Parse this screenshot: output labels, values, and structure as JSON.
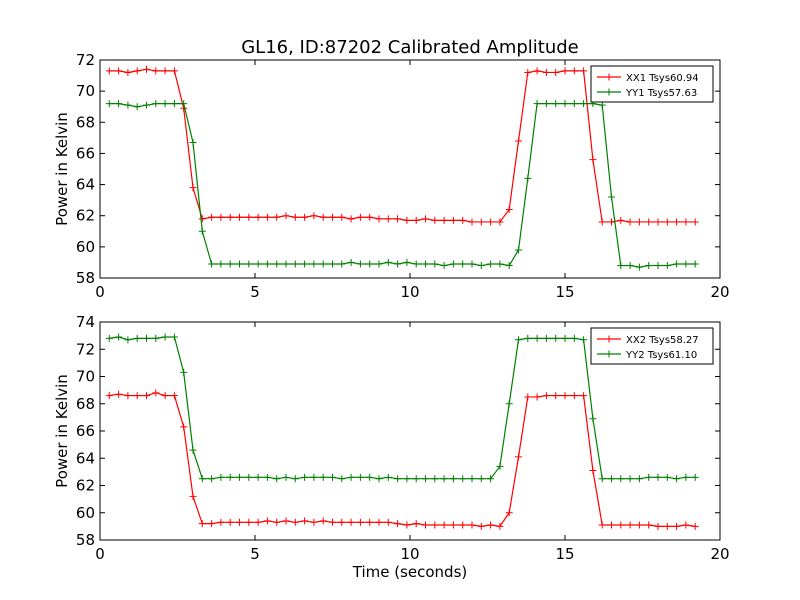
{
  "figure": {
    "title": "GL16, ID:87202 Calibrated Amplitude"
  },
  "chart_data": [
    {
      "type": "line",
      "xlabel": "",
      "ylabel": "Power in Kelvin",
      "xlim": [
        0,
        20
      ],
      "ylim": [
        58,
        72
      ],
      "xticks": [
        0,
        5,
        10,
        15,
        20
      ],
      "yticks": [
        58,
        60,
        62,
        64,
        66,
        68,
        70,
        72
      ],
      "grid": false,
      "legend": "top-right",
      "x": [
        0.3,
        0.6,
        0.9,
        1.2,
        1.5,
        1.8,
        2.1,
        2.4,
        2.7,
        3.0,
        3.3,
        3.6,
        3.9,
        4.2,
        4.5,
        4.8,
        5.1,
        5.4,
        5.7,
        6.0,
        6.3,
        6.6,
        6.9,
        7.2,
        7.5,
        7.8,
        8.1,
        8.4,
        8.7,
        9.0,
        9.3,
        9.6,
        9.9,
        10.2,
        10.5,
        10.8,
        11.1,
        11.4,
        11.7,
        12.0,
        12.3,
        12.6,
        12.9,
        13.2,
        13.5,
        13.8,
        14.1,
        14.4,
        14.7,
        15.0,
        15.3,
        15.6,
        15.9,
        16.2,
        16.5,
        16.8,
        17.1,
        17.4,
        17.7,
        18.0,
        18.3,
        18.6,
        18.9,
        19.2
      ],
      "series": [
        {
          "name": "XX1 Tsys60.94",
          "color": "#ff0000",
          "values": [
            71.3,
            71.3,
            71.2,
            71.3,
            71.4,
            71.3,
            71.3,
            71.3,
            68.9,
            63.8,
            61.8,
            61.9,
            61.9,
            61.9,
            61.9,
            61.9,
            61.9,
            61.9,
            61.9,
            62.0,
            61.9,
            61.9,
            62.0,
            61.9,
            61.9,
            61.9,
            61.8,
            61.9,
            61.9,
            61.8,
            61.8,
            61.8,
            61.7,
            61.7,
            61.8,
            61.7,
            61.7,
            61.7,
            61.7,
            61.6,
            61.6,
            61.6,
            61.6,
            62.4,
            66.8,
            71.2,
            71.3,
            71.2,
            71.2,
            71.3,
            71.3,
            71.3,
            65.6,
            61.6,
            61.6,
            61.7,
            61.6,
            61.6,
            61.6,
            61.6,
            61.6,
            61.6,
            61.6,
            61.6
          ]
        },
        {
          "name": "YY1 Tsys57.63",
          "color": "#008000",
          "values": [
            69.2,
            69.2,
            69.1,
            69.0,
            69.1,
            69.2,
            69.2,
            69.2,
            69.2,
            66.7,
            61.0,
            58.9,
            58.9,
            58.9,
            58.9,
            58.9,
            58.9,
            58.9,
            58.9,
            58.9,
            58.9,
            58.9,
            58.9,
            58.9,
            58.9,
            58.9,
            59.0,
            58.9,
            58.9,
            58.9,
            59.0,
            58.9,
            59.0,
            58.9,
            58.9,
            58.9,
            58.8,
            58.9,
            58.9,
            58.9,
            58.8,
            58.9,
            58.9,
            58.8,
            59.8,
            64.4,
            69.2,
            69.2,
            69.2,
            69.2,
            69.2,
            69.2,
            69.2,
            69.1,
            63.2,
            58.8,
            58.8,
            58.7,
            58.8,
            58.8,
            58.8,
            58.9,
            58.9,
            58.9
          ]
        }
      ]
    },
    {
      "type": "line",
      "xlabel": "Time (seconds)",
      "ylabel": "Power in Kelvin",
      "xlim": [
        0,
        20
      ],
      "ylim": [
        58,
        74
      ],
      "xticks": [
        0,
        5,
        10,
        15,
        20
      ],
      "yticks": [
        58,
        60,
        62,
        64,
        66,
        68,
        70,
        72,
        74
      ],
      "grid": false,
      "legend": "top-right",
      "x": [
        0.3,
        0.6,
        0.9,
        1.2,
        1.5,
        1.8,
        2.1,
        2.4,
        2.7,
        3.0,
        3.3,
        3.6,
        3.9,
        4.2,
        4.5,
        4.8,
        5.1,
        5.4,
        5.7,
        6.0,
        6.3,
        6.6,
        6.9,
        7.2,
        7.5,
        7.8,
        8.1,
        8.4,
        8.7,
        9.0,
        9.3,
        9.6,
        9.9,
        10.2,
        10.5,
        10.8,
        11.1,
        11.4,
        11.7,
        12.0,
        12.3,
        12.6,
        12.9,
        13.2,
        13.5,
        13.8,
        14.1,
        14.4,
        14.7,
        15.0,
        15.3,
        15.6,
        15.9,
        16.2,
        16.5,
        16.8,
        17.1,
        17.4,
        17.7,
        18.0,
        18.3,
        18.6,
        18.9,
        19.2
      ],
      "series": [
        {
          "name": "XX2 Tsys58.27",
          "color": "#ff0000",
          "values": [
            68.6,
            68.7,
            68.6,
            68.6,
            68.6,
            68.8,
            68.6,
            68.6,
            66.3,
            61.2,
            59.2,
            59.2,
            59.3,
            59.3,
            59.3,
            59.3,
            59.3,
            59.4,
            59.3,
            59.4,
            59.3,
            59.4,
            59.3,
            59.4,
            59.3,
            59.3,
            59.3,
            59.3,
            59.3,
            59.3,
            59.3,
            59.2,
            59.1,
            59.2,
            59.1,
            59.1,
            59.1,
            59.1,
            59.1,
            59.1,
            59.0,
            59.1,
            59.0,
            60.0,
            64.1,
            68.5,
            68.5,
            68.6,
            68.6,
            68.6,
            68.6,
            68.6,
            63.1,
            59.1,
            59.1,
            59.1,
            59.1,
            59.1,
            59.1,
            59.0,
            59.0,
            59.0,
            59.1,
            59.0
          ]
        },
        {
          "name": "YY2 Tsys61.10",
          "color": "#008000",
          "values": [
            72.8,
            72.9,
            72.7,
            72.8,
            72.8,
            72.8,
            72.9,
            72.9,
            70.3,
            64.6,
            62.5,
            62.5,
            62.6,
            62.6,
            62.6,
            62.6,
            62.6,
            62.6,
            62.5,
            62.6,
            62.5,
            62.6,
            62.6,
            62.6,
            62.6,
            62.5,
            62.6,
            62.6,
            62.6,
            62.5,
            62.6,
            62.5,
            62.5,
            62.5,
            62.5,
            62.5,
            62.5,
            62.5,
            62.5,
            62.5,
            62.5,
            62.5,
            63.4,
            68.0,
            72.7,
            72.8,
            72.8,
            72.8,
            72.8,
            72.8,
            72.8,
            72.7,
            66.9,
            62.5,
            62.5,
            62.5,
            62.5,
            62.5,
            62.6,
            62.6,
            62.6,
            62.5,
            62.6,
            62.6
          ]
        }
      ]
    }
  ]
}
